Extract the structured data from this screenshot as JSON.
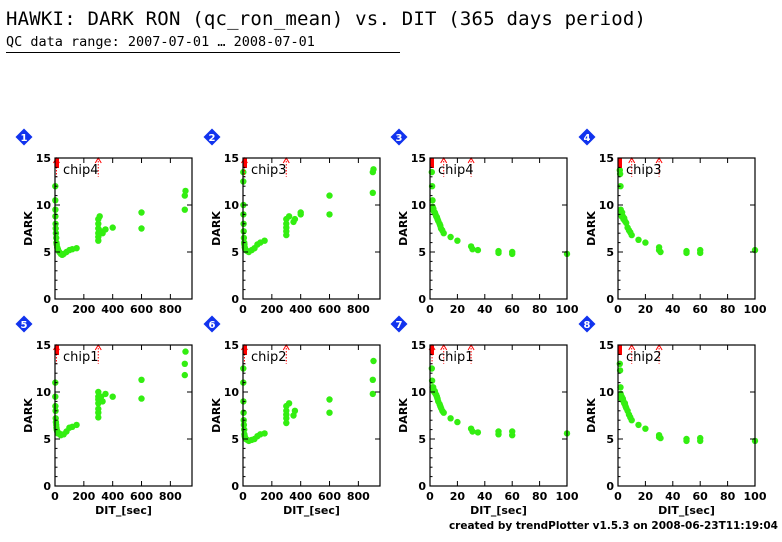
{
  "title": "HAWKI: DARK RON (qc_ron_mean) vs. DIT (365 days period)",
  "subtitle": "QC data range: 2007-07-01 … 2008-07-01",
  "credit": "created by trendPlotter v1.5.3 on 2008-06-23T11:19:04",
  "colors": {
    "points": "#33ee11",
    "markers": "#ff0000",
    "badge": "#1133ee"
  },
  "chart_data": [
    {
      "panel": "1",
      "type": "scatter",
      "label": "chip4",
      "ylabel": "DARK",
      "xlabel": "",
      "xlim": [
        0,
        950
      ],
      "ylim": [
        0,
        15
      ],
      "xticks": [
        0,
        200,
        400,
        600,
        800
      ],
      "yticks": [
        0,
        5,
        10,
        15
      ],
      "markers": [
        10,
        300
      ],
      "points": [
        [
          2,
          12
        ],
        [
          2,
          10.5
        ],
        [
          3,
          9.5
        ],
        [
          3,
          8.8
        ],
        [
          4,
          8
        ],
        [
          5,
          7.5
        ],
        [
          6,
          7
        ],
        [
          8,
          6.5
        ],
        [
          10,
          6
        ],
        [
          12,
          5.8
        ],
        [
          15,
          5.5
        ],
        [
          20,
          5.3
        ],
        [
          30,
          5
        ],
        [
          40,
          4.8
        ],
        [
          50,
          4.7
        ],
        [
          60,
          4.8
        ],
        [
          80,
          5
        ],
        [
          100,
          5.2
        ],
        [
          120,
          5.3
        ],
        [
          150,
          5.4
        ],
        [
          300,
          6.2
        ],
        [
          300,
          6.6
        ],
        [
          300,
          7
        ],
        [
          300,
          7.5
        ],
        [
          300,
          8
        ],
        [
          300,
          8.5
        ],
        [
          310,
          8.8
        ],
        [
          320,
          7.2
        ],
        [
          330,
          7
        ],
        [
          350,
          7.4
        ],
        [
          400,
          7.6
        ],
        [
          600,
          9.2
        ],
        [
          600,
          7.5
        ],
        [
          900,
          9.5
        ],
        [
          900,
          11
        ],
        [
          905,
          11.5
        ]
      ]
    },
    {
      "panel": "2",
      "type": "scatter",
      "label": "chip3",
      "ylabel": "DARK",
      "xlabel": "",
      "xlim": [
        0,
        950
      ],
      "ylim": [
        0,
        15
      ],
      "xticks": [
        0,
        200,
        400,
        600,
        800
      ],
      "yticks": [
        0,
        5,
        10,
        15
      ],
      "markers": [
        10,
        300
      ],
      "points": [
        [
          2,
          13.5
        ],
        [
          2,
          12.5
        ],
        [
          3,
          10
        ],
        [
          3,
          9
        ],
        [
          4,
          8
        ],
        [
          5,
          7.2
        ],
        [
          6,
          6.5
        ],
        [
          8,
          6
        ],
        [
          10,
          5.8
        ],
        [
          12,
          5.5
        ],
        [
          15,
          5.3
        ],
        [
          20,
          5.2
        ],
        [
          30,
          5.1
        ],
        [
          40,
          5
        ],
        [
          60,
          5.2
        ],
        [
          80,
          5.4
        ],
        [
          100,
          5.8
        ],
        [
          120,
          6
        ],
        [
          150,
          6.2
        ],
        [
          300,
          6.8
        ],
        [
          300,
          7.2
        ],
        [
          300,
          7.6
        ],
        [
          300,
          8
        ],
        [
          300,
          8.5
        ],
        [
          320,
          8.8
        ],
        [
          350,
          8.2
        ],
        [
          360,
          8.5
        ],
        [
          400,
          9
        ],
        [
          400,
          9.2
        ],
        [
          600,
          9
        ],
        [
          600,
          11
        ],
        [
          900,
          11.3
        ],
        [
          900,
          13.5
        ],
        [
          905,
          13.8
        ]
      ]
    },
    {
      "panel": "3",
      "type": "scatter",
      "label": "chip4",
      "ylabel": "DARK",
      "xlabel": "",
      "xlim": [
        0,
        100
      ],
      "ylim": [
        0,
        15
      ],
      "xticks": [
        0,
        20,
        40,
        60,
        80,
        100
      ],
      "yticks": [
        0,
        5,
        10,
        15
      ],
      "markers": [
        10,
        30
      ],
      "points": [
        [
          1.3,
          13.5
        ],
        [
          1.5,
          12
        ],
        [
          1.8,
          10.5
        ],
        [
          2,
          9.8
        ],
        [
          2.2,
          9.5
        ],
        [
          2.5,
          9.6
        ],
        [
          3,
          9.3
        ],
        [
          3.5,
          9.2
        ],
        [
          4,
          9
        ],
        [
          4.5,
          8.8
        ],
        [
          5,
          8.7
        ],
        [
          5.5,
          8.5
        ],
        [
          6,
          8.3
        ],
        [
          7,
          8
        ],
        [
          7.5,
          7.8
        ],
        [
          8,
          7.5
        ],
        [
          9,
          7.3
        ],
        [
          10,
          7
        ],
        [
          15,
          6.6
        ],
        [
          20,
          6.2
        ],
        [
          30,
          5.6
        ],
        [
          31,
          5.3
        ],
        [
          35,
          5.2
        ],
        [
          50,
          5.1
        ],
        [
          50,
          4.9
        ],
        [
          60,
          5
        ],
        [
          60,
          4.8
        ],
        [
          100,
          4.8
        ]
      ]
    },
    {
      "panel": "4",
      "type": "scatter",
      "label": "chip3",
      "ylabel": "DARK",
      "xlabel": "",
      "xlim": [
        0,
        100
      ],
      "ylim": [
        0,
        15
      ],
      "xticks": [
        0,
        20,
        40,
        60,
        80,
        100
      ],
      "yticks": [
        0,
        5,
        10,
        15
      ],
      "markers": [
        10,
        30
      ],
      "points": [
        [
          1.3,
          13.7
        ],
        [
          1.5,
          13.3
        ],
        [
          1.8,
          12
        ],
        [
          2,
          9.5
        ],
        [
          2.3,
          9
        ],
        [
          2.7,
          8.8
        ],
        [
          3,
          9.2
        ],
        [
          3.5,
          8.8
        ],
        [
          4,
          8.5
        ],
        [
          4.5,
          8.6
        ],
        [
          5,
          8.3
        ],
        [
          6,
          8.1
        ],
        [
          7,
          7.6
        ],
        [
          8,
          7.3
        ],
        [
          9,
          7.1
        ],
        [
          10,
          6.8
        ],
        [
          15,
          6.3
        ],
        [
          20,
          6
        ],
        [
          30,
          5.5
        ],
        [
          30,
          5.2
        ],
        [
          31,
          5
        ],
        [
          50,
          5.1
        ],
        [
          50,
          4.9
        ],
        [
          60,
          5.2
        ],
        [
          60,
          4.9
        ],
        [
          100,
          5.2
        ]
      ]
    },
    {
      "panel": "5",
      "type": "scatter",
      "label": "chip1",
      "ylabel": "DARK",
      "xlabel": "DIT_[sec]",
      "xlim": [
        0,
        950
      ],
      "ylim": [
        0,
        15
      ],
      "xticks": [
        0,
        200,
        400,
        600,
        800
      ],
      "yticks": [
        0,
        5,
        10,
        15
      ],
      "markers": [
        10,
        300
      ],
      "points": [
        [
          2,
          11
        ],
        [
          2,
          9.5
        ],
        [
          3,
          8.5
        ],
        [
          4,
          8
        ],
        [
          5,
          7.2
        ],
        [
          6,
          6.8
        ],
        [
          8,
          6.5
        ],
        [
          10,
          6.2
        ],
        [
          12,
          6
        ],
        [
          15,
          5.8
        ],
        [
          20,
          5.6
        ],
        [
          30,
          5.6
        ],
        [
          40,
          5.4
        ],
        [
          60,
          5.5
        ],
        [
          80,
          5.8
        ],
        [
          100,
          6.2
        ],
        [
          120,
          6.3
        ],
        [
          150,
          6.5
        ],
        [
          300,
          7.3
        ],
        [
          300,
          7.8
        ],
        [
          300,
          8.2
        ],
        [
          300,
          8.8
        ],
        [
          300,
          9.2
        ],
        [
          300,
          9.5
        ],
        [
          300,
          10
        ],
        [
          320,
          9.5
        ],
        [
          330,
          9
        ],
        [
          350,
          9.8
        ],
        [
          400,
          9.5
        ],
        [
          600,
          11.3
        ],
        [
          600,
          9.3
        ],
        [
          900,
          11.8
        ],
        [
          900,
          13
        ],
        [
          905,
          14.3
        ]
      ]
    },
    {
      "panel": "6",
      "type": "scatter",
      "label": "chip2",
      "ylabel": "DARK",
      "xlabel": "DIT_[sec]",
      "xlim": [
        0,
        950
      ],
      "ylim": [
        0,
        15
      ],
      "xticks": [
        0,
        200,
        400,
        600,
        800
      ],
      "yticks": [
        0,
        5,
        10,
        15
      ],
      "markers": [
        10,
        300
      ],
      "points": [
        [
          2,
          12.5
        ],
        [
          2,
          11
        ],
        [
          3,
          9
        ],
        [
          4,
          7.8
        ],
        [
          5,
          7
        ],
        [
          6,
          6.5
        ],
        [
          8,
          6
        ],
        [
          10,
          5.5
        ],
        [
          12,
          5.3
        ],
        [
          15,
          5.1
        ],
        [
          20,
          5
        ],
        [
          30,
          4.9
        ],
        [
          40,
          4.8
        ],
        [
          60,
          4.9
        ],
        [
          80,
          5
        ],
        [
          100,
          5.3
        ],
        [
          120,
          5.5
        ],
        [
          150,
          5.6
        ],
        [
          300,
          6.7
        ],
        [
          300,
          7.2
        ],
        [
          300,
          7.6
        ],
        [
          300,
          8
        ],
        [
          300,
          8.5
        ],
        [
          320,
          8.8
        ],
        [
          350,
          7.5
        ],
        [
          360,
          8
        ],
        [
          600,
          9.2
        ],
        [
          600,
          7.8
        ],
        [
          900,
          9.8
        ],
        [
          900,
          11.3
        ],
        [
          905,
          13.3
        ]
      ]
    },
    {
      "panel": "7",
      "type": "scatter",
      "label": "chip1",
      "ylabel": "DARK",
      "xlabel": "DIT_[sec]",
      "xlim": [
        0,
        100
      ],
      "ylim": [
        0,
        15
      ],
      "xticks": [
        0,
        20,
        40,
        60,
        80,
        100
      ],
      "yticks": [
        0,
        5,
        10,
        15
      ],
      "markers": [
        1.5,
        10,
        30
      ],
      "points": [
        [
          1.3,
          12.5
        ],
        [
          1.5,
          11.2
        ],
        [
          1.8,
          10.5
        ],
        [
          2,
          10.4
        ],
        [
          2.3,
          10.5
        ],
        [
          2.7,
          10.2
        ],
        [
          3,
          10
        ],
        [
          3.5,
          10.1
        ],
        [
          4,
          9.8
        ],
        [
          4.5,
          9.7
        ],
        [
          5,
          9.5
        ],
        [
          5.5,
          9.3
        ],
        [
          6,
          9
        ],
        [
          7,
          8.7
        ],
        [
          7.5,
          8.5
        ],
        [
          8,
          8.3
        ],
        [
          9,
          8
        ],
        [
          10,
          7.8
        ],
        [
          15,
          7.2
        ],
        [
          20,
          6.8
        ],
        [
          30,
          6.1
        ],
        [
          31,
          5.8
        ],
        [
          35,
          5.7
        ],
        [
          50,
          5.8
        ],
        [
          50,
          5.5
        ],
        [
          60,
          5.8
        ],
        [
          60,
          5.4
        ],
        [
          100,
          5.6
        ]
      ]
    },
    {
      "panel": "8",
      "type": "scatter",
      "label": "chip2",
      "ylabel": "DARK",
      "xlabel": "DIT_[sec]",
      "xlim": [
        0,
        100
      ],
      "ylim": [
        0,
        15
      ],
      "xticks": [
        0,
        20,
        40,
        60,
        80,
        100
      ],
      "yticks": [
        0,
        5,
        10,
        15
      ],
      "markers": [
        10,
        30
      ],
      "points": [
        [
          1.3,
          13
        ],
        [
          1.5,
          12.3
        ],
        [
          1.8,
          10.5
        ],
        [
          2,
          9.8
        ],
        [
          2.3,
          9.3
        ],
        [
          2.7,
          9.5
        ],
        [
          3,
          9.2
        ],
        [
          3.5,
          9.3
        ],
        [
          4,
          9
        ],
        [
          4.5,
          8.8
        ],
        [
          5,
          8.8
        ],
        [
          5.5,
          8.5
        ],
        [
          6,
          8.3
        ],
        [
          7,
          8
        ],
        [
          8,
          7.6
        ],
        [
          9,
          7.3
        ],
        [
          10,
          7
        ],
        [
          15,
          6.5
        ],
        [
          20,
          6.1
        ],
        [
          30,
          5.4
        ],
        [
          30,
          5.2
        ],
        [
          31,
          5.1
        ],
        [
          50,
          5
        ],
        [
          50,
          4.8
        ],
        [
          60,
          5.1
        ],
        [
          60,
          4.8
        ],
        [
          100,
          4.8
        ]
      ]
    }
  ]
}
